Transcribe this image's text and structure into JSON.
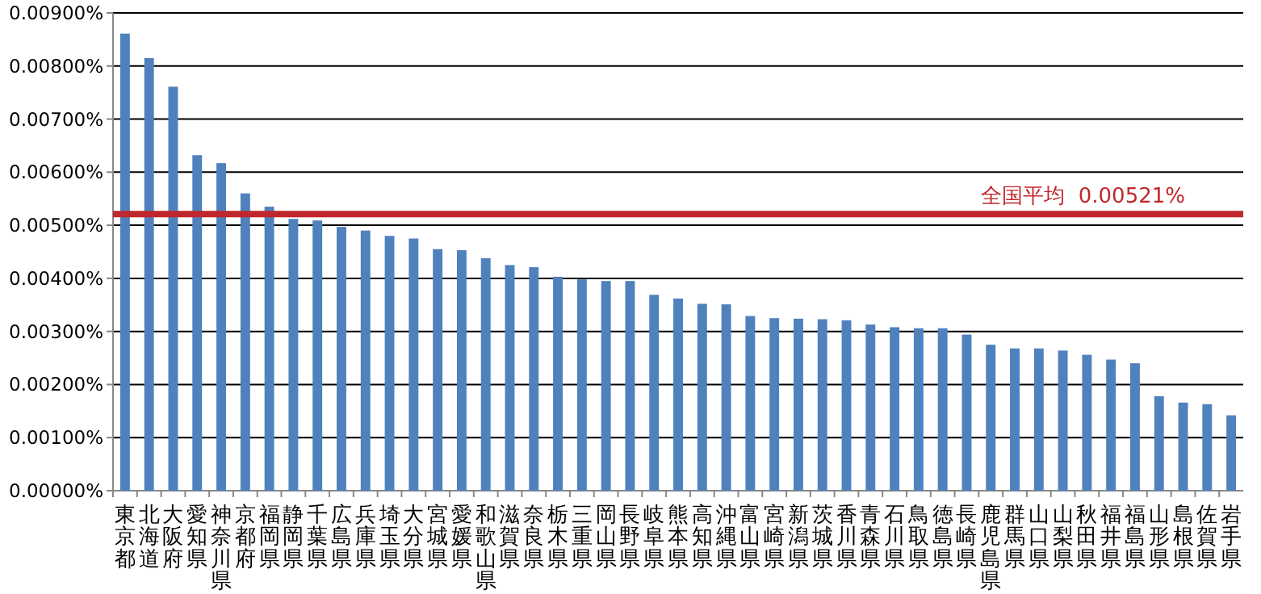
{
  "chart_data": {
    "type": "bar",
    "categories": [
      "東京都",
      "北海道",
      "大阪府",
      "愛知県",
      "神奈川県",
      "京都府",
      "福岡県",
      "静岡県",
      "千葉県",
      "広島県",
      "兵庫県",
      "埼玉県",
      "大分県",
      "宮城県",
      "愛媛県",
      "和歌山県",
      "滋賀県",
      "奈良県",
      "栃木県",
      "三重県",
      "岡山県",
      "長野県",
      "岐阜県",
      "熊本県",
      "高知県",
      "沖縄県",
      "富山県",
      "宮崎県",
      "新潟県",
      "茨城県",
      "香川県",
      "青森県",
      "石川県",
      "鳥取県",
      "徳島県",
      "長崎県",
      "鹿児島県",
      "群馬県",
      "山口県",
      "山梨県",
      "秋田県",
      "福井県",
      "福島県",
      "山形県",
      "島根県",
      "佐賀県",
      "岩手県"
    ],
    "values": [
      0.00861,
      0.00815,
      0.00761,
      0.00632,
      0.00617,
      0.0056,
      0.00535,
      0.00512,
      0.00509,
      0.00497,
      0.0049,
      0.0048,
      0.00475,
      0.00455,
      0.00453,
      0.00438,
      0.00425,
      0.00421,
      0.00403,
      0.00398,
      0.00395,
      0.00395,
      0.00369,
      0.00362,
      0.00352,
      0.00351,
      0.00329,
      0.00325,
      0.00324,
      0.00323,
      0.00321,
      0.00313,
      0.00308,
      0.00306,
      0.00306,
      0.00294,
      0.00275,
      0.00268,
      0.00268,
      0.00264,
      0.00256,
      0.00247,
      0.0024,
      0.00178,
      0.00166,
      0.00163,
      0.00142
    ],
    "color": "#4f81bd",
    "ylim": [
      0,
      0.009
    ],
    "yticks": [
      {
        "value": 0,
        "label": "0.00000%"
      },
      {
        "value": 0.001,
        "label": "0.00100%"
      },
      {
        "value": 0.002,
        "label": "0.00200%"
      },
      {
        "value": 0.003,
        "label": "0.00300%"
      },
      {
        "value": 0.004,
        "label": "0.00400%"
      },
      {
        "value": 0.005,
        "label": "0.00500%"
      },
      {
        "value": 0.006,
        "label": "0.00600%"
      },
      {
        "value": 0.007,
        "label": "0.00700%"
      },
      {
        "value": 0.008,
        "label": "0.00800%"
      },
      {
        "value": 0.009,
        "label": "0.00900%"
      }
    ],
    "grid": "y",
    "ref_lines": [
      {
        "axis": "y",
        "value": 0.00521,
        "label": "全国平均  0.00521%",
        "color": "#c0272d"
      }
    ]
  }
}
